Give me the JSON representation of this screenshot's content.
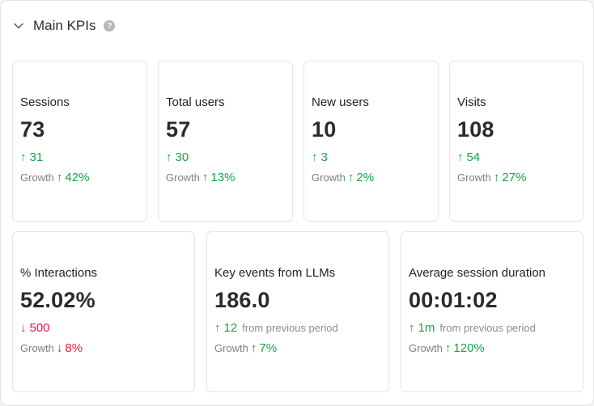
{
  "section": {
    "title": "Main KPIs",
    "help_icon": "question-mark-icon",
    "collapse_icon": "chevron-down-icon"
  },
  "colors": {
    "up": "#16a34a",
    "down": "#e11d48"
  },
  "cards": [
    {
      "label": "Sessions",
      "value": "73",
      "delta_arrow": "↑",
      "delta": "31",
      "delta_from": "",
      "growth_label": "Growth",
      "growth_arrow": "↑",
      "growth": "42%",
      "trend": "up"
    },
    {
      "label": "Total users",
      "value": "57",
      "delta_arrow": "↑",
      "delta": "30",
      "delta_from": "",
      "growth_label": "Growth",
      "growth_arrow": "↑",
      "growth": "13%",
      "trend": "up"
    },
    {
      "label": "New users",
      "value": "10",
      "delta_arrow": "↑",
      "delta": "3",
      "delta_from": "",
      "growth_label": "Growth",
      "growth_arrow": "↑",
      "growth": "2%",
      "trend": "up"
    },
    {
      "label": "Visits",
      "value": "108",
      "delta_arrow": "↑",
      "delta": "54",
      "delta_from": "",
      "growth_label": "Growth",
      "growth_arrow": "↑",
      "growth": "27%",
      "trend": "up"
    },
    {
      "label": "% Interactions",
      "value": "52.02%",
      "delta_arrow": "↓",
      "delta": "500",
      "delta_from": "",
      "growth_label": "Growth",
      "growth_arrow": "↓",
      "growth": "8%",
      "trend": "down"
    },
    {
      "label": "Key events from LLMs",
      "value": "186.0",
      "delta_arrow": "↑",
      "delta": "12",
      "delta_from": "from previous period",
      "growth_label": "Growth",
      "growth_arrow": "↑",
      "growth": "7%",
      "trend": "up"
    },
    {
      "label": "Average session duration",
      "value": "00:01:02",
      "delta_arrow": "↑",
      "delta": "1m",
      "delta_from": "from previous period",
      "growth_label": "Growth",
      "growth_arrow": "↑",
      "growth": "120%",
      "trend": "up"
    }
  ]
}
